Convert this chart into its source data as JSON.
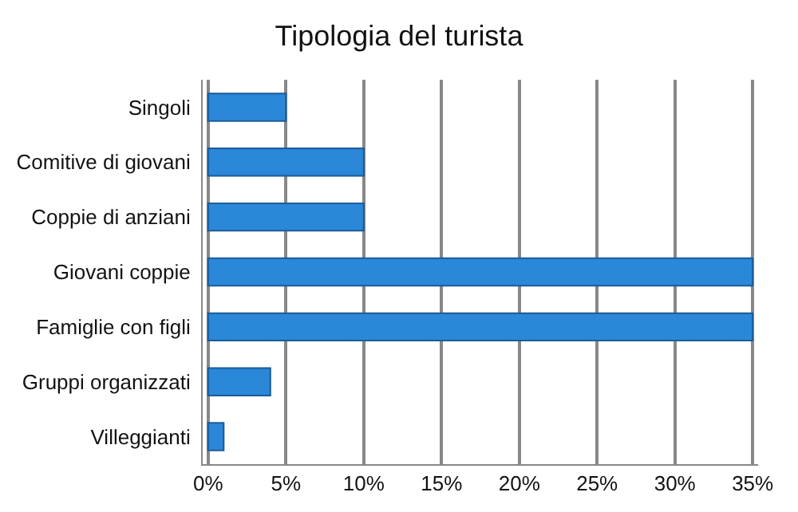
{
  "chart_data": {
    "type": "bar",
    "orientation": "horizontal",
    "title": "Tipologia del turista",
    "categories": [
      "Singoli",
      "Comitive di giovani",
      "Coppie di anziani",
      "Giovani coppie",
      "Famiglie con figli",
      "Gruppi organizzati",
      "Villeggianti"
    ],
    "values": [
      5,
      10,
      10,
      35,
      35,
      4,
      1
    ],
    "color": "#2b87d8",
    "xlim": [
      0,
      35
    ],
    "xticks": [
      {
        "value": 0,
        "label": "0%"
      },
      {
        "value": 5,
        "label": "5%"
      },
      {
        "value": 10,
        "label": "10%"
      },
      {
        "value": 15,
        "label": "15%"
      },
      {
        "value": 20,
        "label": "20%"
      },
      {
        "value": 25,
        "label": "25%"
      },
      {
        "value": 30,
        "label": "30%"
      },
      {
        "value": 35,
        "label": "35%"
      }
    ],
    "grid": "x",
    "legend": false
  }
}
